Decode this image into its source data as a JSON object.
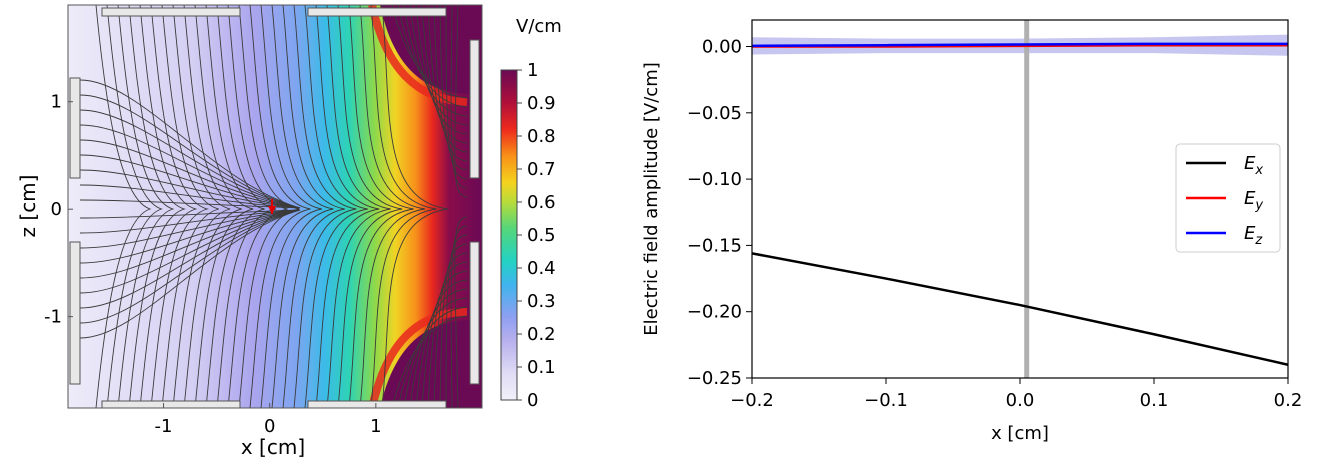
{
  "chart_data": [
    {
      "type": "heatmap",
      "title": "",
      "xlabel": "x [cm]",
      "ylabel": "z [cm]",
      "xlim": [
        -1.9,
        2.0
      ],
      "ylim": [
        -1.85,
        1.9
      ],
      "xticks": [
        -1,
        0,
        1
      ],
      "xtick_labels": [
        "-1",
        "0",
        "1"
      ],
      "yticks": [
        1,
        0,
        -1
      ],
      "ytick_labels": [
        "1",
        "0",
        "-1"
      ],
      "colorbar": {
        "label": "V/cm",
        "min": 0,
        "max": 1,
        "colormap": "jet (white-lavender at 0 to dark purple at 1)",
        "ticks": [
          1,
          0.9,
          0.8,
          0.7,
          0.6,
          0.5,
          0.4,
          0.3,
          0.2,
          0.1,
          0
        ],
        "tick_labels": [
          "1",
          "0.9",
          "0.8",
          "0.7",
          "0.6",
          "0.5",
          "0.4",
          "0.3",
          "0.2",
          "0.1",
          "0"
        ]
      },
      "marker": {
        "x": 0.0,
        "z": 0.0,
        "color": "#e00000",
        "shape": "vertical arrow"
      }
    },
    {
      "type": "line",
      "title": "",
      "xlabel": "x [cm]",
      "ylabel": "Electric field amplitude [V/cm]",
      "xlim": [
        -0.2,
        0.2
      ],
      "ylim": [
        -0.25,
        0.02
      ],
      "xticks": [
        -0.2,
        -0.1,
        0.0,
        0.1,
        0.2
      ],
      "xtick_labels": [
        "−0.2",
        "−0.1",
        "0.0",
        "0.1",
        "0.2"
      ],
      "yticks": [
        0.0,
        -0.05,
        -0.1,
        -0.15,
        -0.2,
        -0.25
      ],
      "ytick_labels": [
        "0.00",
        "−0.05",
        "−0.10",
        "−0.15",
        "−0.20",
        "−0.25"
      ],
      "x": [
        -0.2,
        -0.1,
        0.0,
        0.1,
        0.2
      ],
      "series": [
        {
          "name": "E",
          "sub": "x",
          "color": "#000000",
          "values": [
            -0.156,
            -0.175,
            -0.195,
            -0.217,
            -0.24
          ]
        },
        {
          "name": "E",
          "sub": "y",
          "color": "#ff0000",
          "values": [
            0.0,
            0.0,
            0.0005,
            0.001,
            0.001
          ]
        },
        {
          "name": "E",
          "sub": "z",
          "color": "#0000ff",
          "values": [
            0.0005,
            0.001,
            0.0015,
            0.002,
            0.002
          ]
        }
      ],
      "band": {
        "color": "#8080e0",
        "lower": [
          -0.006,
          -0.005,
          -0.005,
          -0.005,
          -0.007
        ],
        "upper": [
          0.007,
          0.006,
          0.006,
          0.007,
          0.009
        ]
      },
      "vline": {
        "x": 0.005,
        "color": "#b0b0b0"
      },
      "legend": "center-right"
    }
  ]
}
